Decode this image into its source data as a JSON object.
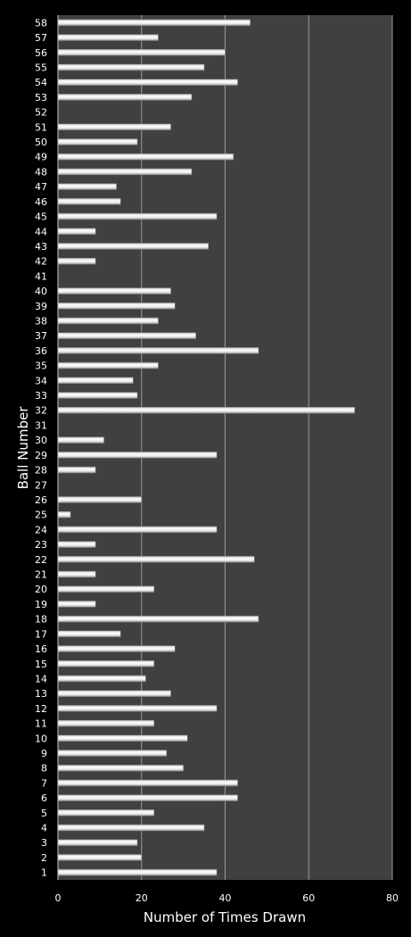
{
  "chart_data": {
    "type": "bar",
    "orientation": "horizontal",
    "title": "",
    "xlabel": "Number of Times Drawn",
    "ylabel": "Ball Number",
    "xlim": [
      0,
      80
    ],
    "xticks": [
      0,
      20,
      40,
      60,
      80
    ],
    "grid": true,
    "legend": "none",
    "colors": {
      "background": "#000000",
      "plot_area": "#404040",
      "bar": "#e8e8e8",
      "text": "#ffffff",
      "grid": "#9a9a9a"
    },
    "categories": [
      "1",
      "2",
      "3",
      "4",
      "5",
      "6",
      "7",
      "8",
      "9",
      "10",
      "11",
      "12",
      "13",
      "14",
      "15",
      "16",
      "17",
      "18",
      "19",
      "20",
      "21",
      "22",
      "23",
      "24",
      "25",
      "26",
      "27",
      "28",
      "29",
      "30",
      "31",
      "32",
      "33",
      "34",
      "35",
      "36",
      "37",
      "38",
      "39",
      "40",
      "41",
      "42",
      "43",
      "44",
      "45",
      "46",
      "47",
      "48",
      "49",
      "50",
      "51",
      "52",
      "53",
      "54",
      "55",
      "56",
      "57",
      "58"
    ],
    "values": [
      38,
      20,
      19,
      35,
      23,
      43,
      43,
      30,
      26,
      31,
      23,
      38,
      27,
      21,
      23,
      28,
      15,
      48,
      9,
      23,
      9,
      47,
      9,
      38,
      3,
      20,
      0,
      9,
      38,
      11,
      0,
      71,
      19,
      18,
      24,
      48,
      33,
      24,
      28,
      27,
      0,
      9,
      36,
      9,
      38,
      15,
      14,
      32,
      42,
      19,
      27,
      0,
      32,
      43,
      35,
      40,
      24,
      46
    ]
  }
}
